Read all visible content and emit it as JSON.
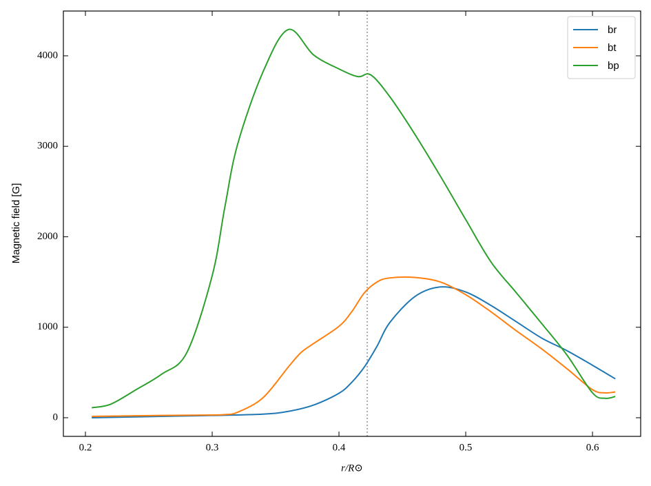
{
  "chart_data": {
    "type": "line",
    "xlabel": "r/R⊙",
    "ylabel": "Magnetic field [G]",
    "xlim": [
      0.1826,
      0.638
    ],
    "ylim": [
      -206,
      4495
    ],
    "xticks": [
      0.2,
      0.3,
      0.4,
      0.5,
      0.6
    ],
    "yticks": [
      0,
      1000,
      2000,
      3000,
      4000
    ],
    "vline": {
      "x": 0.4223,
      "color": "#aaaaaa"
    },
    "legend": "upper right",
    "series": [
      {
        "name": "br",
        "color": "#1f77b4",
        "x": [
          0.205,
          0.26,
          0.3,
          0.34,
          0.36,
          0.38,
          0.4,
          0.41,
          0.42,
          0.43,
          0.44,
          0.46,
          0.48,
          0.5,
          0.52,
          0.54,
          0.56,
          0.58,
          0.6,
          0.618
        ],
        "values": [
          0,
          15,
          25,
          40,
          70,
          140,
          270,
          390,
          560,
          790,
          1050,
          1340,
          1445,
          1390,
          1240,
          1060,
          880,
          740,
          580,
          430
        ]
      },
      {
        "name": "bt",
        "color": "#ff7f0e",
        "x": [
          0.205,
          0.26,
          0.3,
          0.31,
          0.32,
          0.34,
          0.36,
          0.37,
          0.38,
          0.4,
          0.41,
          0.42,
          0.43,
          0.44,
          0.46,
          0.48,
          0.5,
          0.52,
          0.54,
          0.56,
          0.58,
          0.6,
          0.61,
          0.618
        ],
        "values": [
          15,
          25,
          30,
          35,
          60,
          220,
          560,
          720,
          820,
          1010,
          1170,
          1380,
          1500,
          1545,
          1550,
          1500,
          1360,
          1170,
          960,
          760,
          540,
          310,
          275,
          285
        ]
      },
      {
        "name": "bp",
        "color": "#2ca02c",
        "x": [
          0.205,
          0.22,
          0.24,
          0.26,
          0.28,
          0.3,
          0.31,
          0.32,
          0.34,
          0.36,
          0.38,
          0.4,
          0.415,
          0.425,
          0.44,
          0.46,
          0.48,
          0.5,
          0.52,
          0.54,
          0.56,
          0.58,
          0.6,
          0.61,
          0.618
        ],
        "values": [
          110,
          150,
          310,
          480,
          720,
          1570,
          2330,
          3020,
          3820,
          4290,
          4010,
          3855,
          3770,
          3790,
          3550,
          3130,
          2670,
          2190,
          1720,
          1380,
          1040,
          690,
          275,
          215,
          235
        ]
      }
    ]
  }
}
